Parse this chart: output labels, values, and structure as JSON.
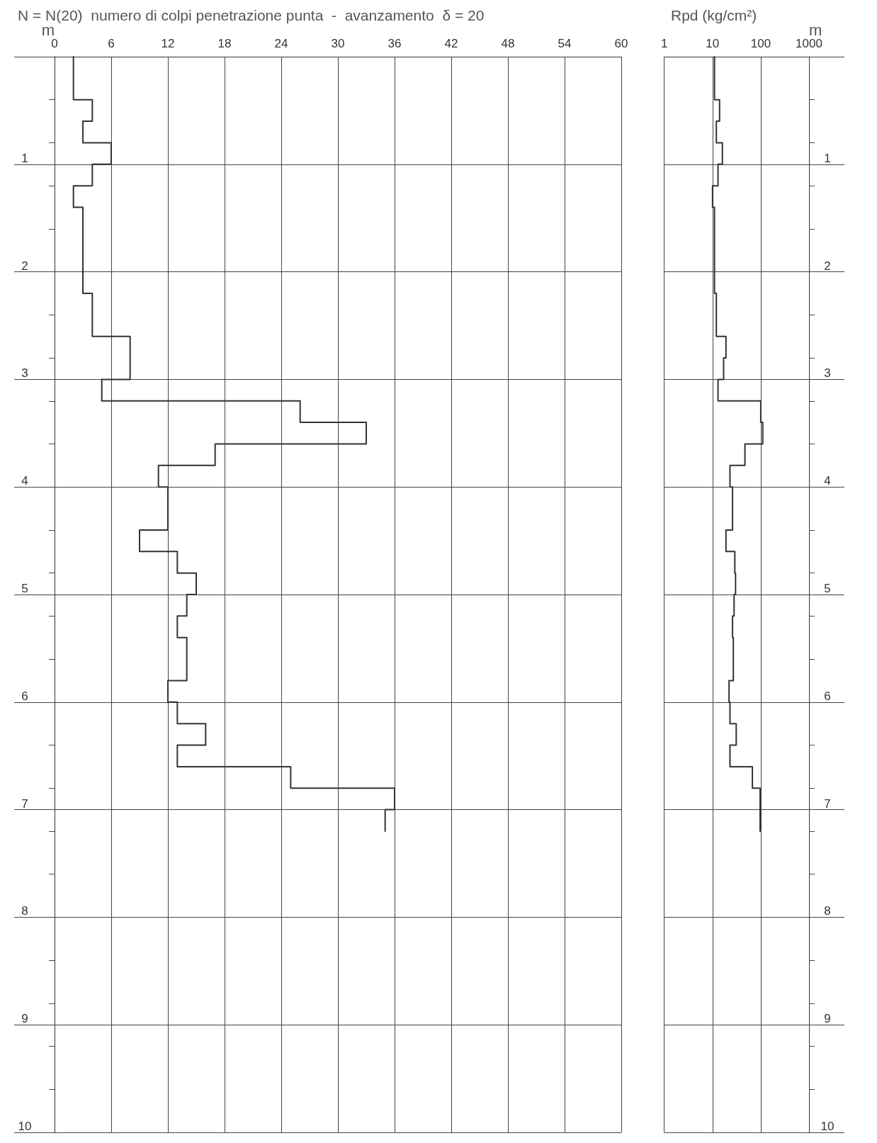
{
  "chart_data": [
    {
      "type": "line",
      "title": "N = N(20)  numero di colpi penetrazione punta  -  avanzamento  δ = 20",
      "ylabel": "m",
      "xlim": [
        0,
        60
      ],
      "xticks": [
        0,
        6,
        12,
        18,
        24,
        30,
        36,
        42,
        48,
        54,
        60
      ],
      "ylim": [
        10,
        0
      ],
      "yticks": [
        {
          "value": 0,
          "label": null
        },
        1,
        2,
        3,
        4,
        5,
        6,
        7,
        8,
        9,
        10
      ],
      "grid": true,
      "series": [
        {
          "color": "#333333",
          "x": [
            2,
            2,
            4,
            4,
            3,
            3,
            6,
            6,
            4,
            4,
            2,
            2,
            3,
            3,
            4,
            4,
            8,
            8,
            5,
            5,
            26,
            26,
            33,
            33,
            17,
            17,
            11,
            11,
            12,
            12,
            9,
            9,
            13,
            13,
            15,
            15,
            14,
            14,
            13,
            13,
            14,
            14,
            12,
            12,
            13,
            13,
            16,
            16,
            13,
            13,
            25,
            25,
            36,
            36,
            35,
            35
          ],
          "values": [
            0,
            0.4,
            0.4,
            0.6,
            0.6,
            0.8,
            0.8,
            1.0,
            1.0,
            1.2,
            1.2,
            1.4,
            1.4,
            2.2,
            2.2,
            2.6,
            2.6,
            3.0,
            3.0,
            3.2,
            3.2,
            3.4,
            3.4,
            3.6,
            3.6,
            3.8,
            3.8,
            4.0,
            4.0,
            4.4,
            4.4,
            4.6,
            4.6,
            4.8,
            4.8,
            5.0,
            5.0,
            5.2,
            5.2,
            5.4,
            5.4,
            5.8,
            5.8,
            6.0,
            6.0,
            6.2,
            6.2,
            6.4,
            6.4,
            6.6,
            6.6,
            6.8,
            6.8,
            7.0,
            7.0,
            7.2
          ]
        }
      ]
    },
    {
      "type": "line",
      "title": "Rpd (kg/cm²)",
      "ylabel": "m",
      "log": "x",
      "xlim": [
        1,
        1000
      ],
      "xticks": [
        1,
        10,
        100,
        1000
      ],
      "ylim": [
        10,
        0
      ],
      "yticks": [
        {
          "value": 0,
          "label": null
        },
        1,
        2,
        3,
        4,
        5,
        6,
        7,
        8,
        9,
        10
      ],
      "grid": true,
      "series": [
        {
          "color": "#333333",
          "x": [
            11,
            11,
            14,
            14,
            12,
            12,
            16,
            16,
            13,
            13,
            10,
            10,
            11,
            11,
            12,
            12,
            19,
            19,
            17,
            17,
            13,
            13,
            100,
            100,
            110,
            110,
            47,
            47,
            23,
            23,
            26,
            26,
            19,
            19,
            29,
            29,
            30,
            30,
            28,
            28,
            26,
            26,
            27,
            27,
            22,
            22,
            23,
            23,
            31,
            31,
            23,
            23,
            67,
            67,
            97,
            97
          ],
          "values": [
            0,
            0.4,
            0.4,
            0.6,
            0.6,
            0.8,
            0.8,
            1.0,
            1.0,
            1.2,
            1.2,
            1.4,
            1.4,
            2.2,
            2.2,
            2.6,
            2.6,
            2.8,
            2.8,
            3.0,
            3.0,
            3.2,
            3.2,
            3.4,
            3.4,
            3.6,
            3.6,
            3.8,
            3.8,
            4.0,
            4.0,
            4.4,
            4.4,
            4.6,
            4.6,
            4.8,
            4.8,
            5.0,
            5.0,
            5.2,
            5.2,
            5.4,
            5.4,
            5.8,
            5.8,
            6.0,
            6.0,
            6.2,
            6.2,
            6.4,
            6.4,
            6.6,
            6.6,
            6.8,
            6.8,
            7.2
          ]
        }
      ]
    }
  ]
}
